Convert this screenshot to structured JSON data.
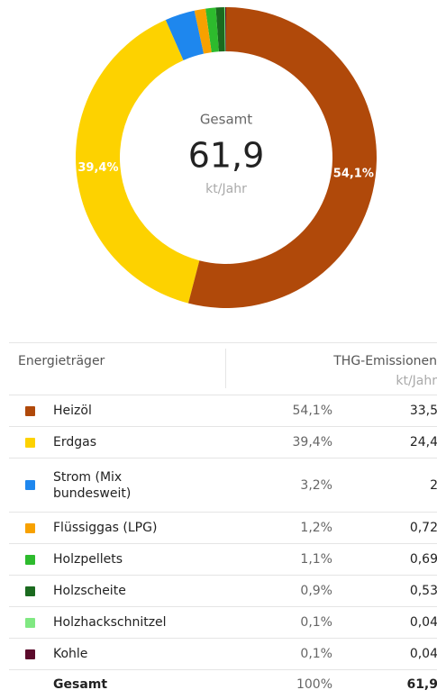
{
  "chart_data": {
    "type": "pie",
    "categories": [
      "Heizöl",
      "Erdgas",
      "Strom (Mix bundesweit)",
      "Flüssiggas (LPG)",
      "Holzpellets",
      "Holzscheite",
      "Holzhackschnitzel",
      "Kohle"
    ],
    "values": [
      54.1,
      39.4,
      3.2,
      1.2,
      1.1,
      0.9,
      0.1,
      0.1
    ],
    "value_labels": [
      "54,1%",
      "39,4%",
      "3,2%",
      "1,2%",
      "1,1%",
      "0,9%",
      "0,1%",
      "0,1%"
    ],
    "colors": [
      "#b0490a",
      "#fdd200",
      "#1e87ee",
      "#f7a100",
      "#2dbb2d",
      "#1b6a1f",
      "#80e882",
      "#5c0b2c"
    ],
    "center": {
      "label": "Gesamt",
      "value": "61,9",
      "unit": "kt/Jahr"
    }
  },
  "table": {
    "header": {
      "col1": "Energieträger",
      "col2": "THG-Emissionen",
      "unit": "kt/Jahr"
    },
    "emissions": [
      "33,5",
      "24,4",
      "2",
      "0,72",
      "0,69",
      "0,53",
      "0,04",
      "0,04"
    ],
    "total": {
      "label": "Gesamt",
      "share": "100%",
      "value": "61,9"
    }
  }
}
